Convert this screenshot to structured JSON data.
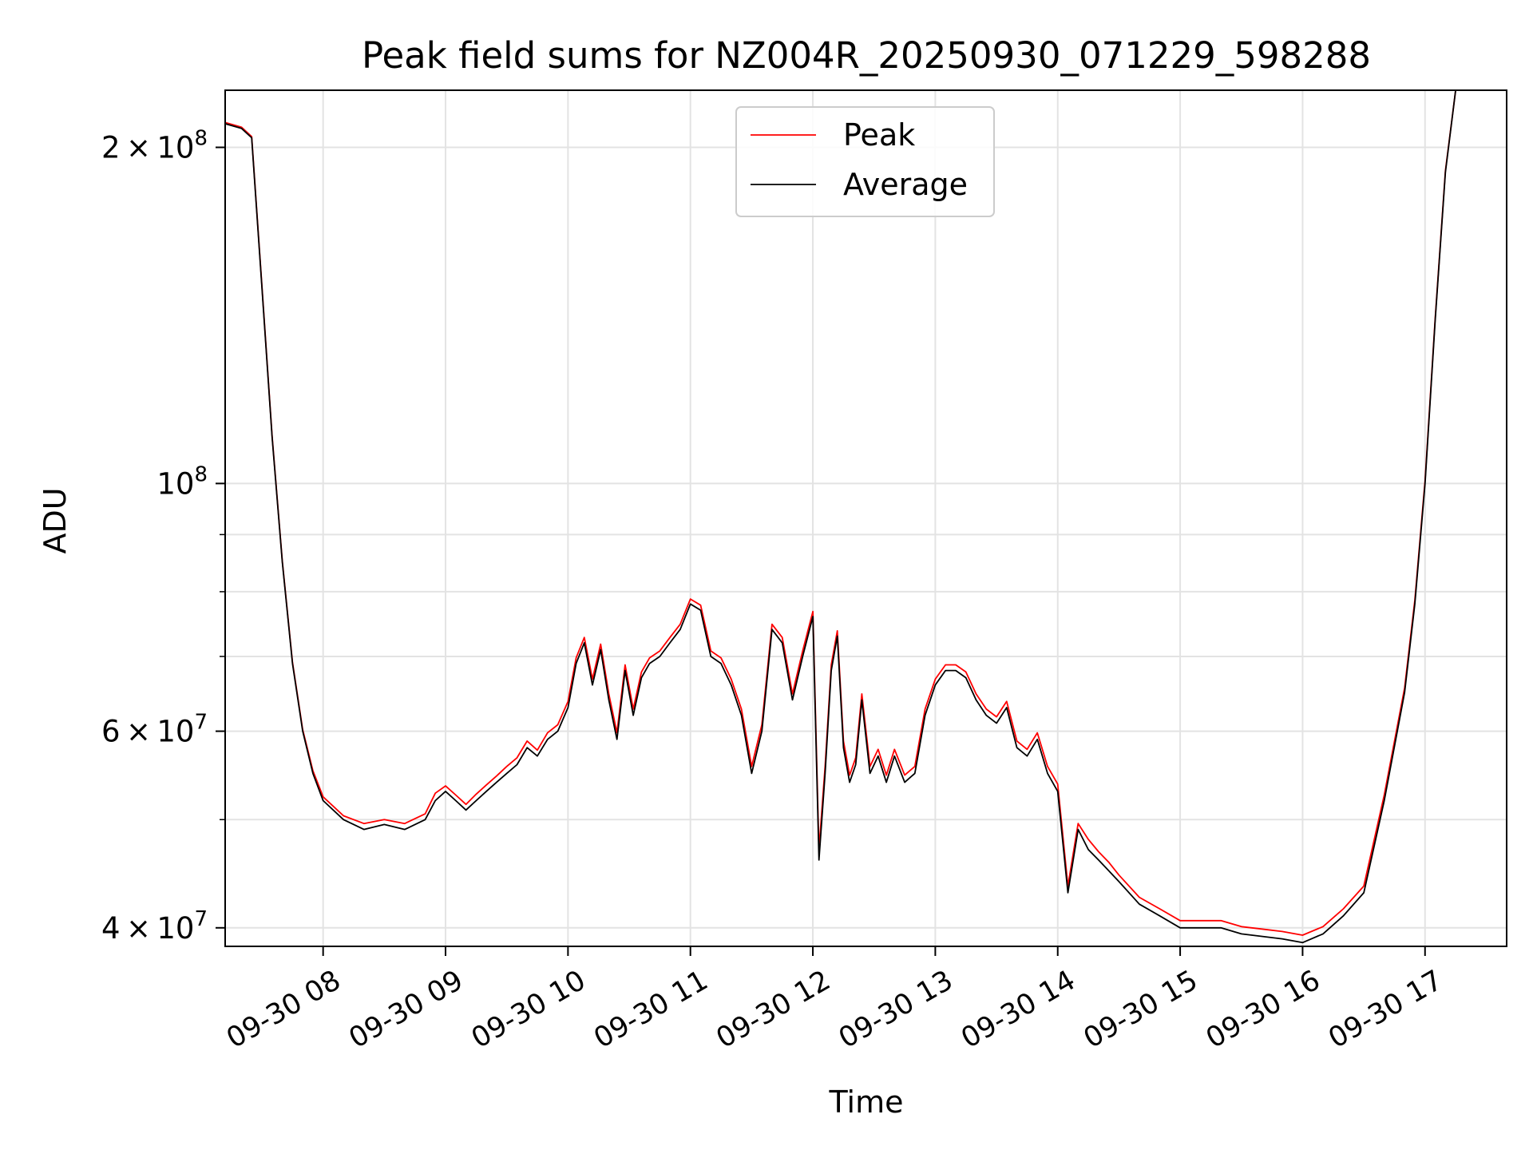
{
  "chart_data": {
    "type": "line",
    "title": "Peak field sums for NZ004R_20250930_071229_598288",
    "xlabel": "Time",
    "ylabel": "ADU",
    "yscale": "log",
    "xlim": [
      "2025-09-30 07:12",
      "2025-09-30 17:40"
    ],
    "ylim": [
      38500000,
      225000000
    ],
    "grid": true,
    "legend_position": "upper center",
    "x_ticks": [
      {
        "x": "2025-09-30 08:00",
        "label": "09-30 08"
      },
      {
        "x": "2025-09-30 09:00",
        "label": "09-30 09"
      },
      {
        "x": "2025-09-30 10:00",
        "label": "09-30 10"
      },
      {
        "x": "2025-09-30 11:00",
        "label": "09-30 11"
      },
      {
        "x": "2025-09-30 12:00",
        "label": "09-30 12"
      },
      {
        "x": "2025-09-30 13:00",
        "label": "09-30 13"
      },
      {
        "x": "2025-09-30 14:00",
        "label": "09-30 14"
      },
      {
        "x": "2025-09-30 15:00",
        "label": "09-30 15"
      },
      {
        "x": "2025-09-30 16:00",
        "label": "09-30 16"
      },
      {
        "x": "2025-09-30 17:00",
        "label": "09-30 17"
      }
    ],
    "y_ticks_major": [
      {
        "value": 40000000,
        "mantissa": "4",
        "exponent": "7"
      },
      {
        "value": 60000000,
        "mantissa": "6",
        "exponent": "7"
      },
      {
        "value": 100000000,
        "mantissa": "",
        "exponent": "8"
      },
      {
        "value": 200000000,
        "mantissa": "2",
        "exponent": "8"
      }
    ],
    "y_ticks_minor": [
      50000000,
      70000000,
      80000000,
      90000000
    ],
    "x": [
      "2025-09-30 07:12",
      "2025-09-30 07:20",
      "2025-09-30 07:25",
      "2025-09-30 07:30",
      "2025-09-30 07:35",
      "2025-09-30 07:40",
      "2025-09-30 07:45",
      "2025-09-30 07:50",
      "2025-09-30 07:55",
      "2025-09-30 08:00",
      "2025-09-30 08:10",
      "2025-09-30 08:20",
      "2025-09-30 08:30",
      "2025-09-30 08:40",
      "2025-09-30 08:50",
      "2025-09-30 08:55",
      "2025-09-30 09:00",
      "2025-09-30 09:05",
      "2025-09-30 09:10",
      "2025-09-30 09:15",
      "2025-09-30 09:20",
      "2025-09-30 09:25",
      "2025-09-30 09:30",
      "2025-09-30 09:35",
      "2025-09-30 09:40",
      "2025-09-30 09:45",
      "2025-09-30 09:50",
      "2025-09-30 09:55",
      "2025-09-30 10:00",
      "2025-09-30 10:04",
      "2025-09-30 10:08",
      "2025-09-30 10:12",
      "2025-09-30 10:16",
      "2025-09-30 10:20",
      "2025-09-30 10:24",
      "2025-09-30 10:28",
      "2025-09-30 10:32",
      "2025-09-30 10:36",
      "2025-09-30 10:40",
      "2025-09-30 10:45",
      "2025-09-30 10:50",
      "2025-09-30 10:55",
      "2025-09-30 11:00",
      "2025-09-30 11:05",
      "2025-09-30 11:10",
      "2025-09-30 11:15",
      "2025-09-30 11:20",
      "2025-09-30 11:25",
      "2025-09-30 11:30",
      "2025-09-30 11:35",
      "2025-09-30 11:40",
      "2025-09-30 11:45",
      "2025-09-30 11:50",
      "2025-09-30 11:55",
      "2025-09-30 12:00",
      "2025-09-30 12:03",
      "2025-09-30 12:06",
      "2025-09-30 12:09",
      "2025-09-30 12:12",
      "2025-09-30 12:15",
      "2025-09-30 12:18",
      "2025-09-30 12:21",
      "2025-09-30 12:24",
      "2025-09-30 12:28",
      "2025-09-30 12:32",
      "2025-09-30 12:36",
      "2025-09-30 12:40",
      "2025-09-30 12:45",
      "2025-09-30 12:50",
      "2025-09-30 12:55",
      "2025-09-30 13:00",
      "2025-09-30 13:05",
      "2025-09-30 13:10",
      "2025-09-30 13:15",
      "2025-09-30 13:20",
      "2025-09-30 13:25",
      "2025-09-30 13:30",
      "2025-09-30 13:35",
      "2025-09-30 13:40",
      "2025-09-30 13:45",
      "2025-09-30 13:50",
      "2025-09-30 13:55",
      "2025-09-30 14:00",
      "2025-09-30 14:05",
      "2025-09-30 14:10",
      "2025-09-30 14:15",
      "2025-09-30 14:20",
      "2025-09-30 14:25",
      "2025-09-30 14:30",
      "2025-09-30 14:40",
      "2025-09-30 14:50",
      "2025-09-30 15:00",
      "2025-09-30 15:10",
      "2025-09-30 15:20",
      "2025-09-30 15:30",
      "2025-09-30 15:40",
      "2025-09-30 15:50",
      "2025-09-30 16:00",
      "2025-09-30 16:10",
      "2025-09-30 16:20",
      "2025-09-30 16:30",
      "2025-09-30 16:40",
      "2025-09-30 16:50",
      "2025-09-30 16:55",
      "2025-09-30 17:00",
      "2025-09-30 17:05",
      "2025-09-30 17:10",
      "2025-09-30 17:15",
      "2025-09-30 17:20",
      "2025-09-30 17:25",
      "2025-09-30 17:30",
      "2025-09-30 17:35",
      "2025-09-30 17:40"
    ],
    "series": [
      {
        "name": "Average",
        "color": "#000000",
        "values": [
          210000000,
          208000000,
          204000000,
          150000000,
          110000000,
          85000000,
          69000000,
          60000000,
          55000000,
          52000000,
          50000000,
          49000000,
          49500000,
          49000000,
          50000000,
          52000000,
          53000000,
          52000000,
          51000000,
          52000000,
          53000000,
          54000000,
          55000000,
          56000000,
          58000000,
          57000000,
          59000000,
          60000000,
          63000000,
          69000000,
          72000000,
          66000000,
          71000000,
          64000000,
          59000000,
          68000000,
          62000000,
          67000000,
          69000000,
          70000000,
          72000000,
          74000000,
          78000000,
          77000000,
          70000000,
          69000000,
          66000000,
          62000000,
          55000000,
          60000000,
          74000000,
          72000000,
          64000000,
          70000000,
          76000000,
          46000000,
          55000000,
          68000000,
          73000000,
          58000000,
          54000000,
          56000000,
          64000000,
          55000000,
          57000000,
          54000000,
          57000000,
          54000000,
          55000000,
          62000000,
          66000000,
          68000000,
          68000000,
          67000000,
          64000000,
          62000000,
          61000000,
          63000000,
          58000000,
          57000000,
          59000000,
          55000000,
          53000000,
          43000000,
          49000000,
          47000000,
          46000000,
          45000000,
          44000000,
          42000000,
          41000000,
          40000000,
          40000000,
          40000000,
          39500000,
          39300000,
          39100000,
          38800000,
          39500000,
          41000000,
          43000000,
          52000000,
          65000000,
          78000000,
          100000000,
          140000000,
          190000000,
          225000000,
          225000000,
          225000000,
          225000000,
          225000000,
          225000000
        ]
      },
      {
        "name": "Peak",
        "color": "#ff0000",
        "values": [
          210500000,
          208500000,
          204500000,
          150500000,
          110300000,
          85200000,
          69200000,
          60200000,
          55300000,
          52400000,
          50400000,
          49600000,
          50000000,
          49600000,
          50600000,
          52800000,
          53600000,
          52600000,
          51600000,
          52700000,
          53700000,
          54700000,
          55800000,
          56800000,
          58800000,
          57700000,
          59800000,
          60800000,
          63800000,
          69800000,
          72800000,
          66800000,
          71800000,
          64800000,
          59800000,
          68800000,
          62800000,
          67800000,
          69800000,
          70800000,
          72800000,
          74800000,
          78800000,
          77800000,
          70800000,
          69800000,
          66800000,
          62800000,
          55800000,
          60800000,
          74800000,
          72800000,
          64800000,
          70800000,
          76800000,
          47000000,
          55800000,
          68800000,
          73800000,
          58800000,
          54800000,
          56800000,
          64800000,
          55800000,
          57800000,
          54800000,
          57800000,
          54800000,
          55800000,
          62800000,
          66800000,
          68800000,
          68800000,
          67800000,
          64800000,
          62800000,
          61800000,
          63800000,
          58800000,
          57800000,
          59800000,
          55800000,
          53800000,
          43600000,
          49600000,
          48000000,
          46800000,
          45800000,
          44600000,
          42600000,
          41600000,
          40600000,
          40600000,
          40600000,
          40100000,
          39900000,
          39700000,
          39400000,
          40100000,
          41600000,
          43600000,
          52600000,
          65600000,
          78600000,
          100600000,
          140600000,
          190600000,
          225000000,
          225000000,
          225000000,
          225000000,
          225000000,
          225000000
        ]
      }
    ]
  }
}
